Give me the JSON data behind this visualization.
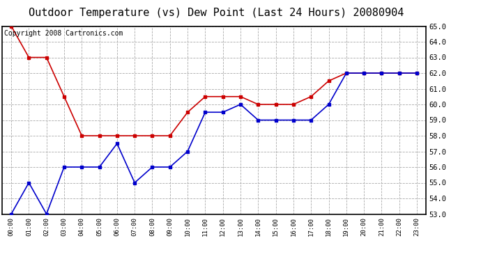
{
  "title": "Outdoor Temperature (vs) Dew Point (Last 24 Hours) 20080904",
  "copyright_text": "Copyright 2008 Cartronics.com",
  "hours": [
    0,
    1,
    2,
    3,
    4,
    5,
    6,
    7,
    8,
    9,
    10,
    11,
    12,
    13,
    14,
    15,
    16,
    17,
    18,
    19,
    20,
    21,
    22,
    23
  ],
  "x_labels": [
    "00:00",
    "01:00",
    "02:00",
    "03:00",
    "04:00",
    "05:00",
    "06:00",
    "07:00",
    "08:00",
    "09:00",
    "10:00",
    "11:00",
    "12:00",
    "13:00",
    "14:00",
    "15:00",
    "16:00",
    "17:00",
    "18:00",
    "19:00",
    "20:00",
    "21:00",
    "22:00",
    "23:00"
  ],
  "temp_values": [
    65.0,
    63.0,
    63.0,
    60.5,
    58.0,
    58.0,
    58.0,
    58.0,
    58.0,
    58.0,
    59.5,
    60.5,
    60.5,
    60.5,
    60.0,
    60.0,
    60.0,
    60.5,
    61.5,
    62.0,
    62.0,
    62.0,
    62.0,
    62.0
  ],
  "dew_values": [
    53.0,
    55.0,
    53.0,
    56.0,
    56.0,
    56.0,
    57.5,
    55.0,
    56.0,
    56.0,
    57.0,
    59.5,
    59.5,
    60.0,
    59.0,
    59.0,
    59.0,
    59.0,
    60.0,
    62.0,
    62.0,
    62.0,
    62.0,
    62.0
  ],
  "temp_color": "#cc0000",
  "dew_color": "#0000cc",
  "ylim_min": 53.0,
  "ylim_max": 65.0,
  "ytick_step": 1.0,
  "bg_color": "#ffffff",
  "plot_bg_color": "#ffffff",
  "grid_color": "#aaaaaa",
  "title_fontsize": 11,
  "copyright_fontsize": 7,
  "marker": "s",
  "marker_size": 3,
  "line_width": 1.2
}
